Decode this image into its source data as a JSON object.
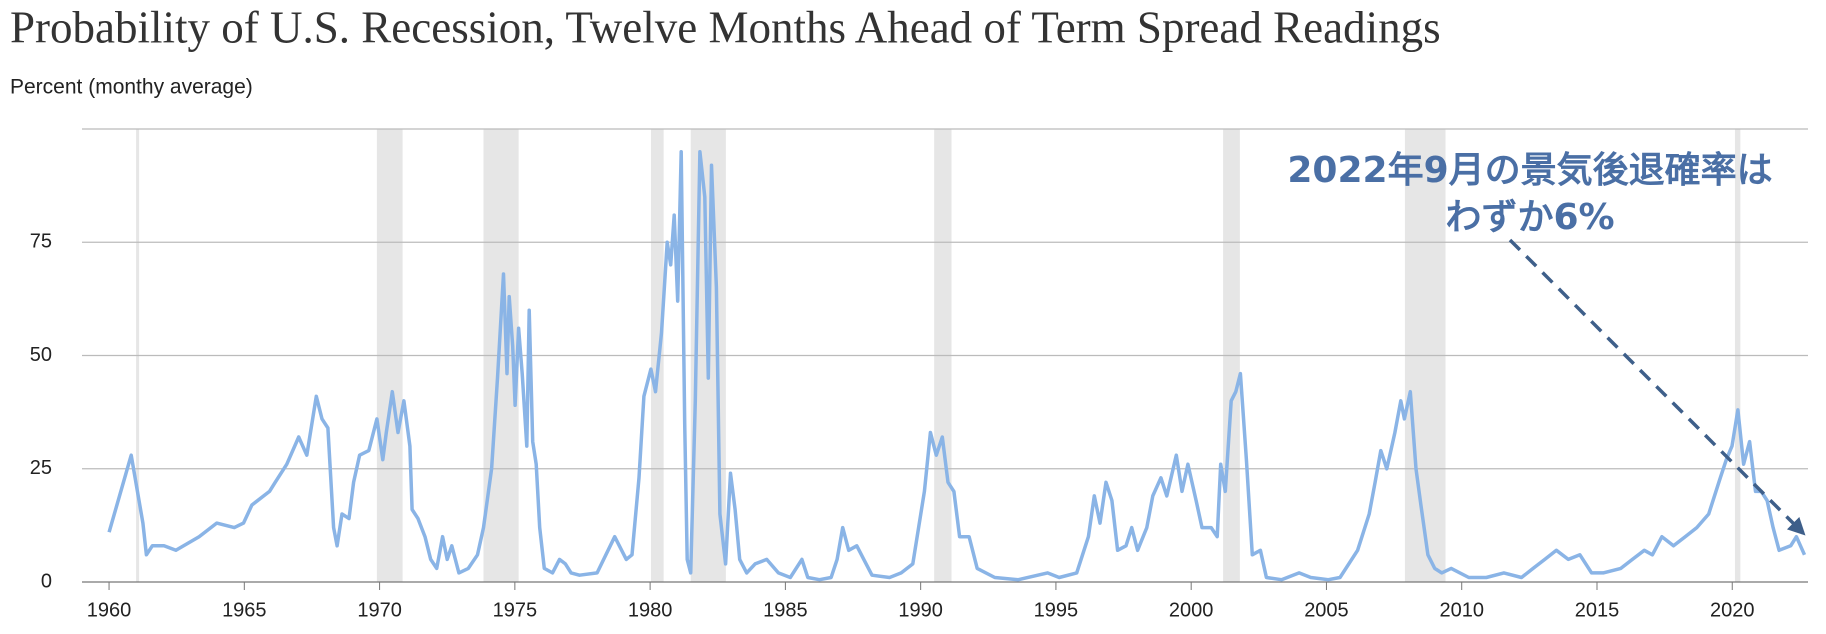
{
  "chart_data": {
    "type": "line",
    "title": "Probability of U.S. Recession, Twelve Months Ahead of Term Spread Readings",
    "subtitle": "Percent (monthy average)",
    "annotation": [
      "2022年9月の景気後退確率は",
      "わずか6%"
    ],
    "xlim": [
      1959,
      2022.8
    ],
    "ylim": [
      0,
      100
    ],
    "xticks": [
      1960,
      1965,
      1970,
      1975,
      1980,
      1985,
      1990,
      1995,
      2000,
      2005,
      2010,
      2015,
      2020
    ],
    "yticks": [
      0,
      25,
      50,
      75
    ],
    "grid": true,
    "recessions": [
      [
        1961.0,
        1961.05
      ],
      [
        1969.9,
        1970.85
      ],
      [
        1973.84,
        1975.14
      ],
      [
        1980.03,
        1980.5
      ],
      [
        1981.5,
        1982.8
      ],
      [
        1990.5,
        1991.14
      ],
      [
        2001.18,
        2001.8
      ],
      [
        2007.9,
        2009.4
      ],
      [
        2020.1,
        2020.3
      ]
    ],
    "recession_color": "#e6e6e6",
    "x": [
      1960.0,
      1960.82,
      1961.25,
      1961.38,
      1961.6,
      1962.03,
      1962.47,
      1963.33,
      1963.98,
      1964.63,
      1964.97,
      1965.28,
      1965.93,
      1966.14,
      1966.57,
      1967.01,
      1967.31,
      1967.66,
      1967.87,
      1968.09,
      1968.3,
      1968.43,
      1968.61,
      1968.87,
      1969.04,
      1969.26,
      1969.6,
      1969.9,
      1970.12,
      1970.25,
      1970.47,
      1970.68,
      1970.9,
      1971.12,
      1971.2,
      1971.42,
      1971.68,
      1971.89,
      1972.11,
      1972.33,
      1972.5,
      1972.67,
      1972.93,
      1973.28,
      1973.62,
      1973.84,
      1974.14,
      1974.36,
      1974.58,
      1974.71,
      1974.79,
      1974.92,
      1975.01,
      1975.14,
      1975.27,
      1975.44,
      1975.53,
      1975.66,
      1975.79,
      1975.92,
      1976.09,
      1976.39,
      1976.65,
      1976.87,
      1977.08,
      1977.39,
      1978.04,
      1978.69,
      1979.12,
      1979.33,
      1979.59,
      1979.77,
      1980.03,
      1980.2,
      1980.42,
      1980.63,
      1980.76,
      1980.89,
      1981.02,
      1981.15,
      1981.28,
      1981.37,
      1981.5,
      1981.67,
      1981.84,
      1982.02,
      1982.15,
      1982.27,
      1982.45,
      1982.58,
      1982.79,
      1982.97,
      1983.14,
      1983.31,
      1983.57,
      1983.88,
      1984.31,
      1984.74,
      1985.18,
      1985.61,
      1985.83,
      1986.26,
      1986.69,
      1986.91,
      1987.12,
      1987.34,
      1987.64,
      1987.9,
      1988.2,
      1988.85,
      1989.28,
      1989.71,
      1990.14,
      1990.36,
      1990.58,
      1990.8,
      1991.01,
      1991.23,
      1991.44,
      1991.79,
      1992.09,
      1992.74,
      1993.61,
      1994.69,
      1995.12,
      1995.77,
      1996.2,
      1996.42,
      1996.63,
      1996.85,
      1997.07,
      1997.28,
      1997.59,
      1997.8,
      1998.02,
      1998.36,
      1998.58,
      1998.88,
      1999.1,
      1999.45,
      1999.66,
      1999.88,
      2000.18,
      2000.4,
      2000.74,
      2000.96,
      2001.09,
      2001.26,
      2001.48,
      2001.65,
      2001.82,
      2002.04,
      2002.26,
      2002.56,
      2002.78,
      2003.34,
      2003.99,
      2004.42,
      2005.07,
      2005.5,
      2006.15,
      2006.58,
      2006.8,
      2007.01,
      2007.23,
      2007.53,
      2007.75,
      2007.88,
      2008.1,
      2008.31,
      2008.49,
      2008.75,
      2009.0,
      2009.26,
      2009.61,
      2010.26,
      2010.91,
      2011.56,
      2012.21,
      2012.64,
      2013.07,
      2013.5,
      2013.94,
      2014.37,
      2014.8,
      2015.23,
      2015.88,
      2016.31,
      2016.75,
      2017.05,
      2017.4,
      2017.83,
      2018.26,
      2018.69,
      2019.13,
      2019.56,
      2019.78,
      2019.99,
      2020.21,
      2020.42,
      2020.64,
      2020.86,
      2021.07,
      2021.29,
      2021.51,
      2021.73,
      2022.16,
      2022.37,
      2022.67
    ],
    "series": [
      {
        "name": "Probability of recession",
        "color": "#8ab4e6",
        "values": [
          11,
          28,
          13,
          6,
          8,
          8,
          7,
          10,
          13,
          12,
          13,
          17,
          20,
          22,
          26,
          32,
          28,
          41,
          36,
          34,
          12,
          8,
          15,
          14,
          22,
          28,
          29,
          36,
          27,
          33,
          42,
          33,
          40,
          30,
          16,
          14,
          10,
          5,
          3,
          10,
          5,
          8,
          2,
          3,
          6,
          12,
          25,
          45,
          68,
          46,
          63,
          52,
          39,
          56,
          46,
          30,
          60,
          31,
          26,
          12,
          3,
          2,
          5,
          4,
          2,
          1.5,
          2,
          10,
          5,
          6,
          23,
          41,
          47,
          42,
          55,
          75,
          70,
          81,
          62,
          95,
          35,
          5,
          2,
          40,
          95,
          85,
          45,
          92,
          65,
          15,
          4,
          24,
          16,
          5,
          2,
          4,
          5,
          2,
          1,
          5,
          1,
          0.5,
          1,
          5,
          12,
          7,
          8,
          5,
          1.5,
          1,
          2,
          4,
          20,
          33,
          28,
          32,
          22,
          20,
          10,
          10,
          3,
          1,
          0.5,
          2,
          1,
          2,
          10,
          19,
          13,
          22,
          18,
          7,
          8,
          12,
          7,
          12,
          19,
          23,
          19,
          28,
          20,
          26,
          18,
          12,
          12,
          10,
          26,
          20,
          40,
          42,
          46,
          27,
          6,
          7,
          1,
          0.5,
          2,
          1,
          0.5,
          1,
          7,
          15,
          22,
          29,
          25,
          33,
          40,
          36,
          42,
          25,
          17,
          6,
          3,
          2,
          3,
          1,
          1,
          2,
          1,
          3,
          5,
          7,
          5,
          6,
          2,
          2,
          3,
          5,
          7,
          6,
          10,
          8,
          10,
          12,
          15,
          23,
          27,
          30,
          38,
          26,
          31,
          20,
          20,
          18,
          12,
          7,
          8,
          10,
          6
        ]
      }
    ]
  }
}
